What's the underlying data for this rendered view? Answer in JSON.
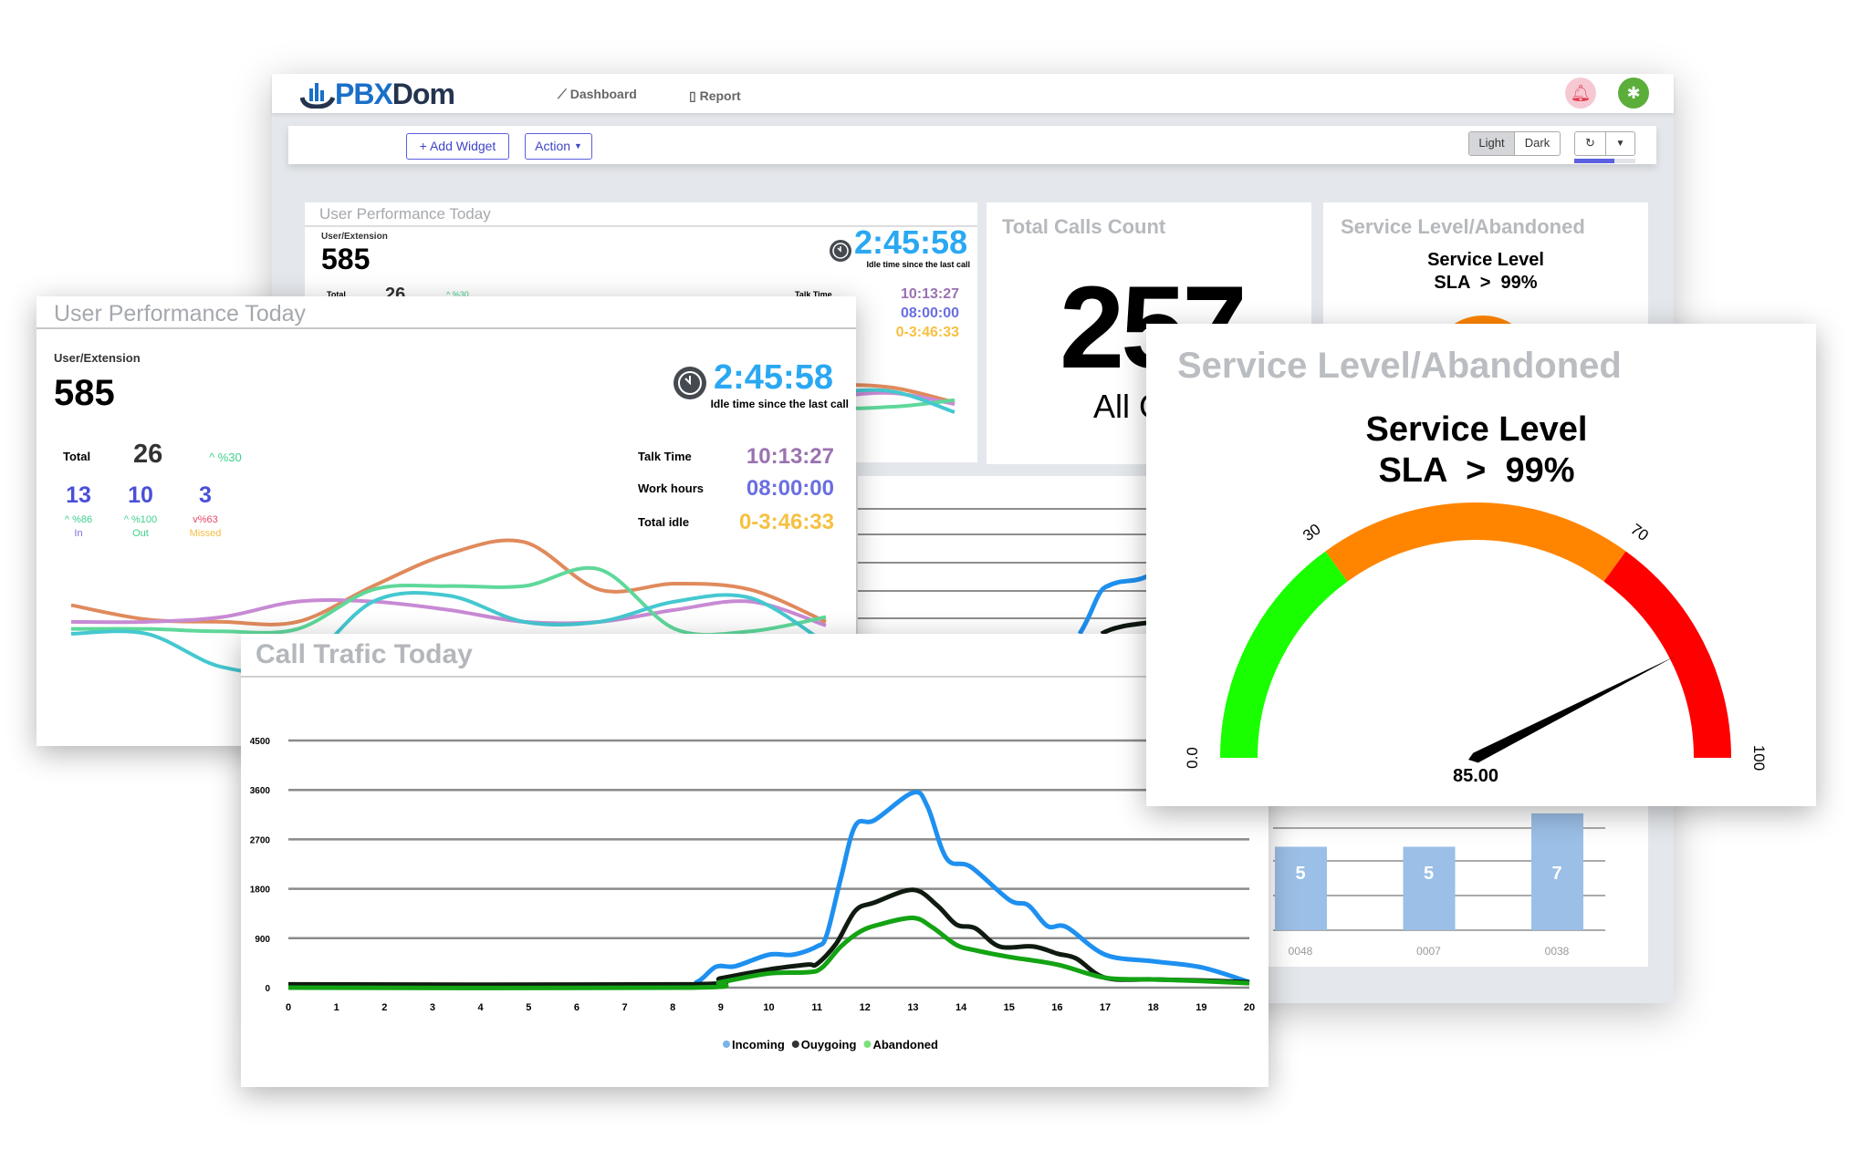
{
  "header": {
    "logo_prefix": "PBX",
    "logo_suffix": "Dom",
    "nav": [
      {
        "label": "Dashboard",
        "icon": "chart-line-icon"
      },
      {
        "label": "Report",
        "icon": "document-icon"
      }
    ],
    "bell_icon": "bell-icon",
    "settings_icon": "gear-icon"
  },
  "toolbar": {
    "add_widget": "+ Add Widget",
    "action": "Action",
    "theme_light": "Light",
    "theme_dark": "Dark",
    "refresh_icon": "refresh-icon",
    "dropdown_icon": "caret-down-icon",
    "progress": 0.65
  },
  "user_performance": {
    "title": "User Performance Today",
    "ext_label": "User/Extension",
    "extension": "585",
    "idle_time": "2:45:58",
    "idle_caption": "Idle time since the last call",
    "total_label": "Total",
    "total": "26",
    "total_change": "^ %30",
    "breakdown": [
      {
        "value": "13",
        "change": "^ %86",
        "label": "In",
        "change_color": "#3fd08a",
        "label_color": "#7a6fd8"
      },
      {
        "value": "10",
        "change": "^ %100",
        "label": "Out",
        "change_color": "#3fd08a",
        "label_color": "#3fd08a"
      },
      {
        "value": "3",
        "change": "v%63",
        "label": "Missed",
        "change_color": "#e64a6a",
        "label_color": "#f5c04a"
      }
    ],
    "stats": [
      {
        "label": "Talk Time",
        "value": "10:13:27",
        "color": "#9b72b0"
      },
      {
        "label": "Work hours",
        "value": "08:00:00",
        "color": "#6a6fe0"
      },
      {
        "label": "Total idle",
        "value": "0-3:46:33",
        "color": "#f6c042"
      }
    ]
  },
  "total_calls": {
    "title": "Total Calls Count",
    "value": "257",
    "caption": "All Calls"
  },
  "service_level": {
    "title": "Service Level/Abandoned",
    "line1": "Service Level",
    "line2": "SLA  >  99%"
  },
  "chart_data": [
    {
      "type": "line",
      "title": "Call Trafic Today",
      "ylim": [
        0,
        4500
      ],
      "yticks": [
        0,
        900,
        1800,
        2700,
        3600,
        4500
      ],
      "xlim": [
        0,
        20
      ],
      "xticks": [
        0,
        1,
        2,
        3,
        4,
        5,
        6,
        7,
        8,
        9,
        10,
        11,
        12,
        13,
        14,
        15,
        16,
        17,
        18,
        19,
        20
      ],
      "grid": true,
      "legend": "bottom",
      "series": [
        {
          "name": "Incoming",
          "color": "#1e90f0",
          "points": [
            [
              0,
              50
            ],
            [
              8,
              50
            ],
            [
              8.5,
              100
            ],
            [
              8.9,
              380
            ],
            [
              9.3,
              390
            ],
            [
              10,
              600
            ],
            [
              10.5,
              600
            ],
            [
              11,
              750
            ],
            [
              11.2,
              950
            ],
            [
              11.5,
              2000
            ],
            [
              11.8,
              2950
            ],
            [
              12.2,
              3050
            ],
            [
              13,
              3550
            ],
            [
              13.3,
              3300
            ],
            [
              13.7,
              2350
            ],
            [
              14.2,
              2200
            ],
            [
              15,
              1600
            ],
            [
              15.4,
              1500
            ],
            [
              15.8,
              1120
            ],
            [
              16.2,
              1100
            ],
            [
              17,
              600
            ],
            [
              18,
              480
            ],
            [
              19,
              370
            ],
            [
              20,
              100
            ]
          ]
        },
        {
          "name": "Ouygoing",
          "color": "#0f1a10",
          "points": [
            [
              0,
              60
            ],
            [
              8.3,
              60
            ],
            [
              9,
              170
            ],
            [
              10,
              330
            ],
            [
              10.8,
              420
            ],
            [
              11,
              430
            ],
            [
              11.4,
              800
            ],
            [
              11.8,
              1400
            ],
            [
              12.2,
              1550
            ],
            [
              13,
              1780
            ],
            [
              13.5,
              1500
            ],
            [
              13.9,
              1150
            ],
            [
              14.3,
              1080
            ],
            [
              14.8,
              750
            ],
            [
              15.5,
              750
            ],
            [
              16,
              620
            ],
            [
              16.4,
              530
            ],
            [
              17,
              180
            ],
            [
              18,
              150
            ],
            [
              19,
              130
            ],
            [
              20,
              100
            ]
          ]
        },
        {
          "name": "Abandoned",
          "color": "#13a313",
          "points": [
            [
              0,
              0
            ],
            [
              8.3,
              0
            ],
            [
              9,
              100
            ],
            [
              10,
              260
            ],
            [
              10.8,
              280
            ],
            [
              11.1,
              360
            ],
            [
              11.5,
              750
            ],
            [
              11.9,
              1020
            ],
            [
              12.3,
              1150
            ],
            [
              13,
              1270
            ],
            [
              13.4,
              1100
            ],
            [
              13.9,
              780
            ],
            [
              14.3,
              680
            ],
            [
              15,
              560
            ],
            [
              16,
              420
            ],
            [
              17,
              180
            ],
            [
              18,
              150
            ],
            [
              19,
              120
            ],
            [
              20,
              80
            ]
          ]
        }
      ]
    },
    {
      "type": "line",
      "title": "User Performance Today",
      "series": [
        {
          "color": "#e08a5c",
          "values": [
            57,
            45,
            43,
            43,
            73,
            100,
            110,
            70,
            75,
            70,
            43
          ]
        },
        {
          "color": "#c88ad4",
          "values": [
            43,
            43,
            47,
            60,
            60,
            53,
            43,
            43,
            53,
            60,
            40
          ]
        },
        {
          "color": "#5fd89a",
          "values": [
            37,
            37,
            35,
            37,
            70,
            73,
            73,
            87,
            37,
            35,
            47
          ]
        },
        {
          "color": "#45c8d0",
          "values": [
            33,
            33,
            5,
            5,
            60,
            65,
            43,
            43,
            60,
            63,
            25
          ]
        }
      ]
    },
    {
      "type": "bar",
      "categories": [
        "0048",
        "0007",
        "0038"
      ],
      "values": [
        5,
        5,
        7
      ],
      "color": "#9bbfe6"
    },
    {
      "type": "gauge",
      "value": 85.0,
      "value_label": "85.00",
      "range": [
        0,
        100
      ],
      "tick_labels": [
        "0.0",
        "30",
        "70",
        "100"
      ],
      "bands": [
        {
          "from": 0,
          "to": 30,
          "color": "#19ff00"
        },
        {
          "from": 30,
          "to": 70,
          "color": "#ff8500"
        },
        {
          "from": 70,
          "to": 100,
          "color": "#ff0000"
        }
      ]
    }
  ]
}
